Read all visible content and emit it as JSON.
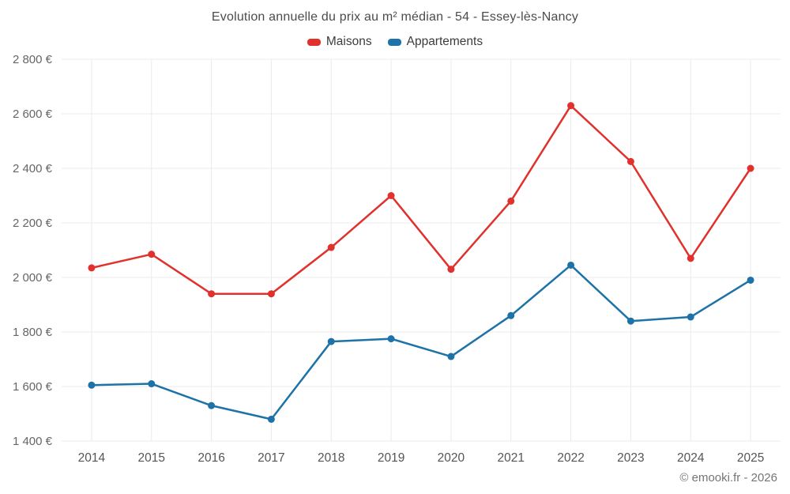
{
  "footer": {
    "credit": "© emooki.fr - 2026"
  },
  "chart_data": {
    "type": "line",
    "title": "Evolution annuelle du prix au m² médian - 54 - Essey-lès-Nancy",
    "categories": [
      "2014",
      "2015",
      "2016",
      "2017",
      "2018",
      "2019",
      "2020",
      "2021",
      "2022",
      "2023",
      "2024",
      "2025"
    ],
    "series": [
      {
        "name": "Maisons",
        "color": "#e0312d",
        "values": [
          2035,
          2085,
          1940,
          1940,
          2110,
          2300,
          2030,
          2280,
          2630,
          2425,
          2070,
          2400
        ]
      },
      {
        "name": "Appartements",
        "color": "#1d72a8",
        "values": [
          1605,
          1610,
          1530,
          1480,
          1765,
          1775,
          1710,
          1860,
          2045,
          1840,
          1855,
          1990
        ]
      }
    ],
    "ylabel": "",
    "xlabel": "",
    "ylim": [
      1400,
      2800
    ],
    "ytick_step": 200,
    "ytick_suffix": "€",
    "grid": true,
    "legend_position": "top",
    "grid_color": "#ebebeb",
    "tick_color": "#666666"
  }
}
